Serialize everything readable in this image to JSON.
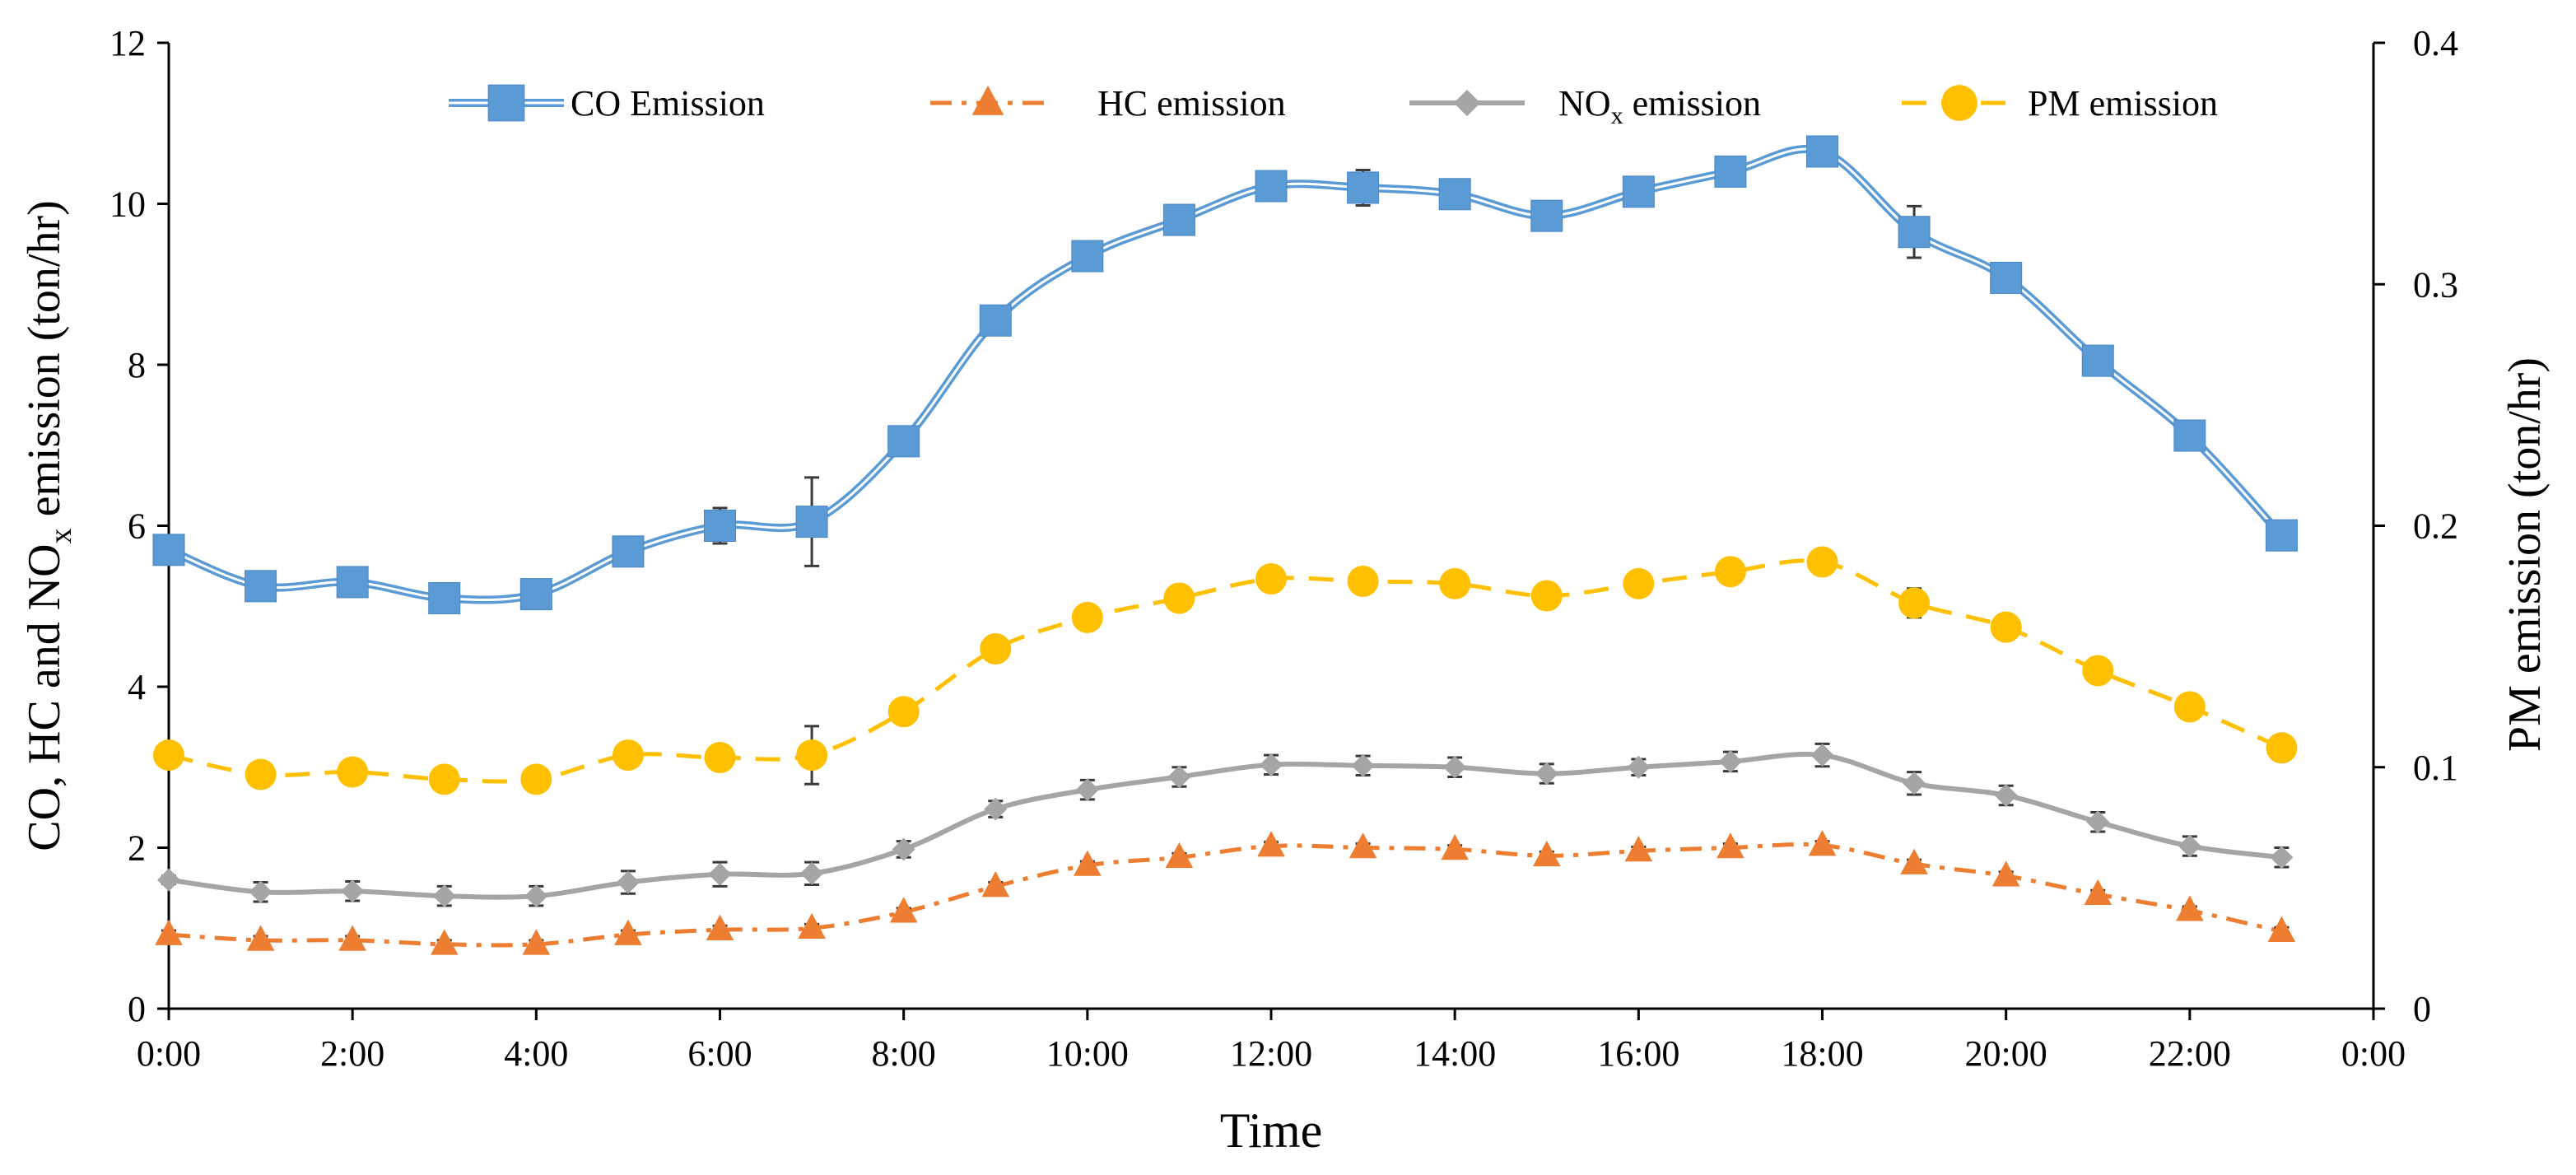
{
  "chart_data": {
    "type": "line",
    "categories": [
      "0:00",
      "1:00",
      "2:00",
      "3:00",
      "4:00",
      "5:00",
      "6:00",
      "7:00",
      "8:00",
      "9:00",
      "10:00",
      "11:00",
      "12:00",
      "13:00",
      "14:00",
      "15:00",
      "16:00",
      "17:00",
      "18:00",
      "19:00",
      "20:00",
      "21:00",
      "22:00",
      "23:00"
    ],
    "x_ticks": [
      "0:00",
      "2:00",
      "4:00",
      "6:00",
      "8:00",
      "10:00",
      "12:00",
      "14:00",
      "16:00",
      "18:00",
      "20:00",
      "22:00",
      "0:00"
    ],
    "xlabel": "Time",
    "ylabel_left": {
      "before": "CO, HC and NO",
      "sub": "x",
      "after": " emission  (ton/hr)"
    },
    "ylabel_right": "PM emission  (ton/hr)",
    "ylim_left": [
      0,
      12
    ],
    "yticks_left": [
      "0",
      "2",
      "4",
      "6",
      "8",
      "10",
      "12"
    ],
    "ylim_right": [
      0,
      0.4
    ],
    "yticks_right": [
      "0",
      "0.1",
      "0.2",
      "0.3",
      "0.4"
    ],
    "legend_position": "top",
    "series": [
      {
        "name": "CO Emission",
        "axis": "left",
        "color": "#5B9BD5",
        "marker": "square",
        "line": "double",
        "values": [
          5.7,
          5.25,
          5.3,
          5.1,
          5.15,
          5.68,
          6.0,
          6.05,
          7.05,
          8.55,
          9.35,
          9.8,
          10.22,
          10.2,
          10.12,
          9.85,
          10.15,
          10.4,
          10.65,
          9.65,
          9.08,
          8.05,
          7.12,
          5.88
        ],
        "errors": [
          0.05,
          0.05,
          0.05,
          0.05,
          0.05,
          0.05,
          0.22,
          0.55,
          0.18,
          0.05,
          0.05,
          0.05,
          0.05,
          0.22,
          0.05,
          0.05,
          0.05,
          0.05,
          0.05,
          0.32,
          0.05,
          0.05,
          0.05,
          0.05
        ]
      },
      {
        "name": "HC emission",
        "legend_sub": "",
        "axis": "left",
        "color": "#ED7D31",
        "marker": "triangle",
        "line": "dashdot",
        "values": [
          0.92,
          0.85,
          0.85,
          0.8,
          0.8,
          0.92,
          0.98,
          1.0,
          1.2,
          1.52,
          1.78,
          1.88,
          2.02,
          2.0,
          1.98,
          1.9,
          1.96,
          2.0,
          2.03,
          1.8,
          1.65,
          1.42,
          1.22,
          0.96
        ],
        "errors": [
          0.05,
          0.05,
          0.05,
          0.05,
          0.05,
          0.05,
          0.05,
          0.05,
          0.05,
          0.05,
          0.05,
          0.05,
          0.05,
          0.05,
          0.05,
          0.05,
          0.05,
          0.05,
          0.05,
          0.05,
          0.05,
          0.05,
          0.05,
          0.05
        ]
      },
      {
        "name": "NOx emission",
        "legend_label": {
          "before": "NO",
          "sub": "x",
          "after": " emission"
        },
        "axis": "left",
        "color": "#A5A5A5",
        "marker": "diamond",
        "line": "solid",
        "values": [
          1.6,
          1.45,
          1.46,
          1.4,
          1.4,
          1.57,
          1.67,
          1.68,
          1.98,
          2.48,
          2.72,
          2.88,
          3.03,
          3.02,
          3.0,
          2.92,
          3.0,
          3.07,
          3.15,
          2.8,
          2.65,
          2.32,
          2.02,
          1.88
        ],
        "errors": [
          0.05,
          0.12,
          0.12,
          0.12,
          0.12,
          0.14,
          0.15,
          0.14,
          0.1,
          0.1,
          0.12,
          0.12,
          0.12,
          0.12,
          0.12,
          0.12,
          0.1,
          0.12,
          0.14,
          0.14,
          0.12,
          0.12,
          0.12,
          0.12
        ]
      },
      {
        "name": "PM emission",
        "axis": "right",
        "color": "#FFC000",
        "marker": "circle",
        "line": "dashed",
        "values": [
          0.105,
          0.097,
          0.098,
          0.095,
          0.095,
          0.105,
          0.104,
          0.105,
          0.123,
          0.149,
          0.162,
          0.17,
          0.178,
          0.177,
          0.176,
          0.171,
          0.176,
          0.181,
          0.185,
          0.168,
          0.158,
          0.14,
          0.125,
          0.108
        ],
        "errors": [
          0.002,
          0.002,
          0.002,
          0.002,
          0.002,
          0.002,
          0.002,
          0.012,
          0.002,
          0.002,
          0.002,
          0.002,
          0.002,
          0.002,
          0.002,
          0.002,
          0.002,
          0.002,
          0.002,
          0.006,
          0.002,
          0.002,
          0.002,
          0.002
        ]
      }
    ]
  }
}
